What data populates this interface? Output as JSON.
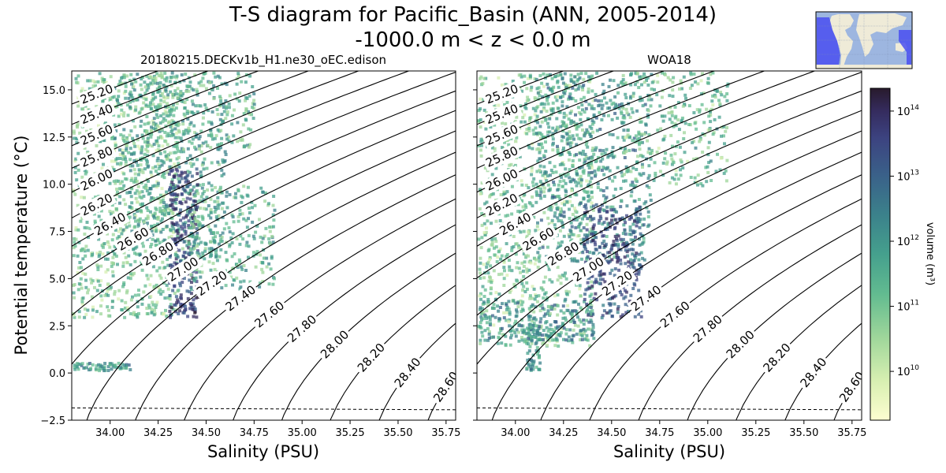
{
  "figure": {
    "title_line1": "T-S diagram for Pacific_Basin (ANN, 2005-2014)",
    "title_line2": "-1000.0 m < z < 0.0 m"
  },
  "chart_data": [
    {
      "type": "heatmap",
      "title": "20180215.DECKv1b_H1.ne30_oEC.edison",
      "xlabel": "Salinity (PSU)",
      "ylabel": "Potential temperature ($^\\circ$C)",
      "ylabel_display": "Potential temperature (°C)",
      "xlim": [
        33.8,
        35.8
      ],
      "ylim": [
        -2.5,
        16
      ],
      "x_ticks": [
        "34.00",
        "34.25",
        "34.50",
        "34.75",
        "35.00",
        "35.25",
        "35.50",
        "35.75"
      ],
      "y_ticks": [
        "−2.5",
        "0.0",
        "2.5",
        "5.0",
        "7.5",
        "10.0",
        "12.5",
        "15.0"
      ],
      "density_contours": [
        "25.20",
        "25.40",
        "25.60",
        "25.80",
        "26.00",
        "26.20",
        "26.40",
        "26.60",
        "26.80",
        "27.00",
        "27.20",
        "27.40",
        "27.60",
        "27.80",
        "28.00",
        "28.20",
        "28.40",
        "28.60"
      ],
      "freezing_line_temp": -1.85
    },
    {
      "type": "heatmap",
      "title": "WOA18",
      "xlabel": "Salinity (PSU)",
      "xlim": [
        33.8,
        35.8
      ],
      "ylim": [
        -2.5,
        16
      ],
      "x_ticks": [
        "34.00",
        "34.25",
        "34.50",
        "34.75",
        "35.00",
        "35.25",
        "35.50",
        "35.75"
      ],
      "density_contours": [
        "25.20",
        "25.40",
        "25.60",
        "25.80",
        "26.00",
        "26.20",
        "26.40",
        "26.60",
        "26.80",
        "27.00",
        "27.20",
        "27.40",
        "27.60",
        "27.80",
        "28.00",
        "28.20",
        "28.40",
        "28.60"
      ],
      "freezing_line_temp": -1.85
    }
  ],
  "colorbar": {
    "label": "volume (m³)",
    "scale": "log",
    "colormap": "deep",
    "ticks": [
      "10",
      "10",
      "10",
      "10",
      "10"
    ],
    "tick_exponents": [
      "10",
      "11",
      "12",
      "13",
      "14"
    ],
    "colors": [
      "#fdfed0",
      "#d7efb1",
      "#9ed69a",
      "#62bb90",
      "#45a08d",
      "#3b818b",
      "#3a6089",
      "#3c4380",
      "#352c5f",
      "#281a2c"
    ]
  },
  "inset_map": {
    "land_color": "#efebd8",
    "ocean_color": "#9db6e0",
    "region_color": "#4a4ff0"
  }
}
